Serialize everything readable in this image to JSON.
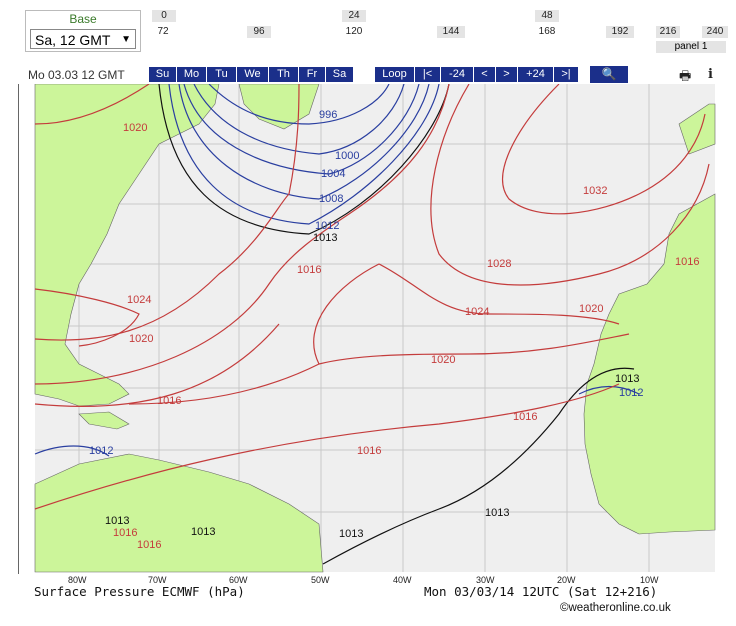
{
  "base": {
    "label": "Base",
    "selected": "Sa, 12 GMT"
  },
  "hours_top": [
    "0",
    "24",
    "48"
  ],
  "hours_bottom": [
    "72",
    "96",
    "120",
    "144",
    "168",
    "192",
    "216",
    "240"
  ],
  "panel": "panel 1",
  "date_label": "Mo 03.03 12 GMT",
  "days": [
    "Su",
    "Mo",
    "Tu",
    "We",
    "Th",
    "Fr",
    "Sa"
  ],
  "controls": [
    "Loop",
    "|<",
    "-24",
    "<",
    ">",
    "+24",
    ">|"
  ],
  "map": {
    "isobars_blue": [
      "996",
      "1000",
      "1004",
      "1008",
      "1012",
      "1012",
      "1012"
    ],
    "isobars_black": [
      "1013",
      "1013",
      "1013",
      "1013",
      "1013",
      "1013"
    ],
    "isobars_red": [
      "1020",
      "1016",
      "1024",
      "1020",
      "1016",
      "1028",
      "1032",
      "1024",
      "1020",
      "1020",
      "1016",
      "1016",
      "1016",
      "1016",
      "1016"
    ],
    "lon_labels": [
      "80W",
      "70W",
      "60W",
      "50W",
      "40W",
      "30W",
      "20W",
      "10W"
    ],
    "colors": {
      "sea": "#efefef",
      "land": "#ccf59a",
      "grid": "#c8c8c8",
      "red": "#c43c3c",
      "blue": "#2a3fa0"
    }
  },
  "caption_left": "Surface Pressure ECMWF (hPa)",
  "caption_right": "Mon 03/03/14 12UTC  (Sat 12+216)",
  "credit": "©weatheronline.co.uk"
}
